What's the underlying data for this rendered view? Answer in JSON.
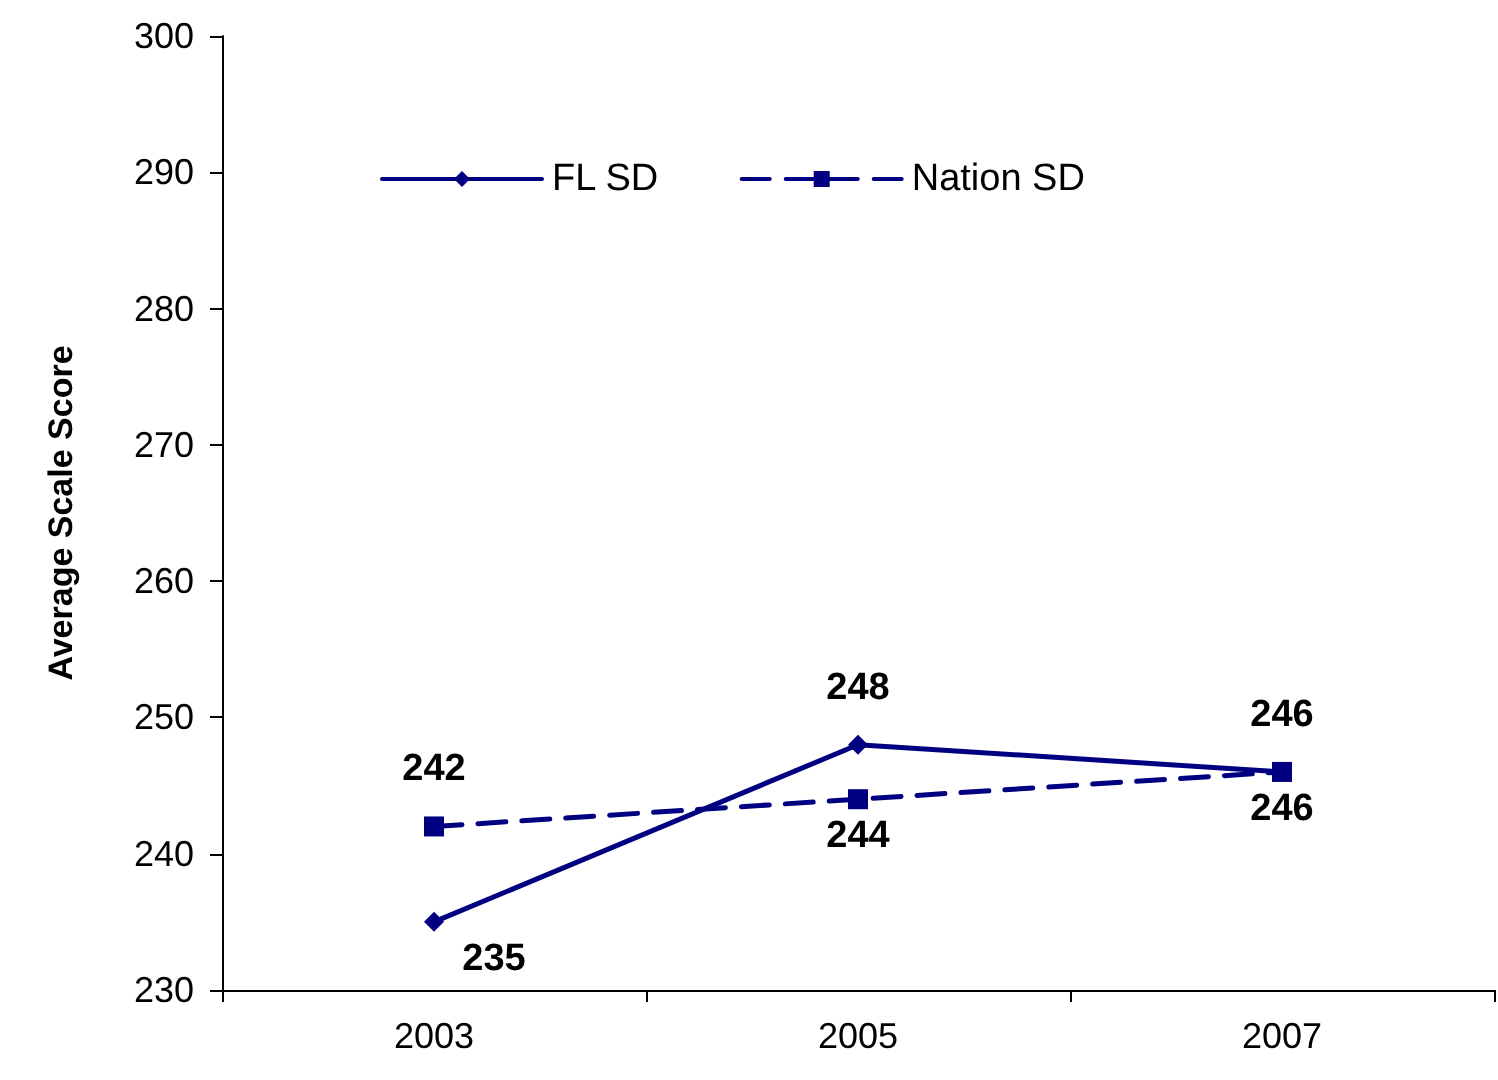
{
  "chart_data": {
    "type": "line",
    "ylabel": "Average Scale Score",
    "categories": [
      "2003",
      "2005",
      "2007"
    ],
    "series": [
      {
        "name": "FL SD",
        "color": "#000080",
        "values": [
          235,
          248,
          246
        ],
        "marker": "diamond",
        "line_style": "solid"
      },
      {
        "name": "Nation SD",
        "color": "#000080",
        "values": [
          242,
          244,
          246
        ],
        "marker": "square",
        "line_style": "dashed"
      }
    ],
    "ylim": [
      230,
      300
    ],
    "yticks": [
      230,
      240,
      250,
      260,
      270,
      280,
      290,
      300
    ],
    "grid": false,
    "legend": "top left",
    "data_labels": true
  }
}
